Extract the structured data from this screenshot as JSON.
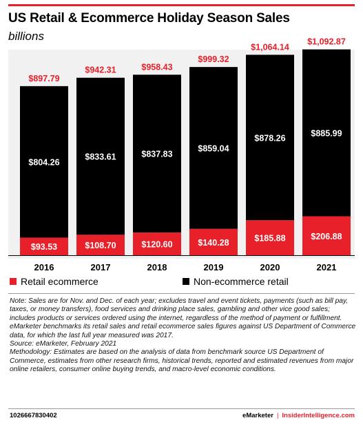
{
  "header": {
    "title": "US Retail & Ecommerce Holiday Season Sales",
    "subtitle": "billions"
  },
  "colors": {
    "accent": "#e8202a",
    "ecommerce": "#e8202a",
    "non_ecommerce": "#000000",
    "plot_background": "#f1f1f1"
  },
  "chart_data": {
    "type": "bar",
    "stacked": true,
    "categories": [
      "2016",
      "2017",
      "2018",
      "2019",
      "2020",
      "2021"
    ],
    "series": [
      {
        "name": "Retail ecommerce",
        "values": [
          93.53,
          108.7,
          120.6,
          140.28,
          185.88,
          206.88
        ],
        "labels": [
          "$93.53",
          "$108.70",
          "$120.60",
          "$140.28",
          "$185.88",
          "$206.88"
        ]
      },
      {
        "name": "Non-ecommerce retail",
        "values": [
          804.26,
          833.61,
          837.83,
          859.04,
          878.26,
          885.99
        ],
        "labels": [
          "$804.26",
          "$833.61",
          "$837.83",
          "$859.04",
          "$878.26",
          "$885.99"
        ]
      }
    ],
    "totals": [
      897.79,
      942.31,
      958.43,
      999.32,
      1064.14,
      1092.87
    ],
    "total_labels": [
      "$897.79",
      "$942.31",
      "$958.43",
      "$999.32",
      "$1,064.14",
      "$1,092.87"
    ],
    "ylim": [
      0,
      1150
    ],
    "grid": false,
    "legend": "bottom"
  },
  "notes": {
    "note": "Note: Sales are for Nov. and Dec. of each year; excludes travel and event tickets, payments (such as bill pay, taxes, or money transfers), food services and drinking place sales, gambling and other vice good sales; includes products or services ordered using the internet, regardless of the method of payment or fulfillment. eMarketer benchmarks its retail sales and retail ecommerce sales figures against US Department of Commerce data, for which the last full year measured was 2017.",
    "source": "Source: eMarketer, February 2021",
    "methodology": "Methodology: Estimates are based on the analysis of data from benchmark source US Department of Commerce, estimates from other research firms, historical trends, reported and estimated revenues from major online retailers, consumer online buying trends, and macro-level economic conditions."
  },
  "footer": {
    "id": "1026667830402",
    "brand": "eMarketer",
    "separator": "|",
    "brand2": "InsiderIntelligence.com"
  }
}
